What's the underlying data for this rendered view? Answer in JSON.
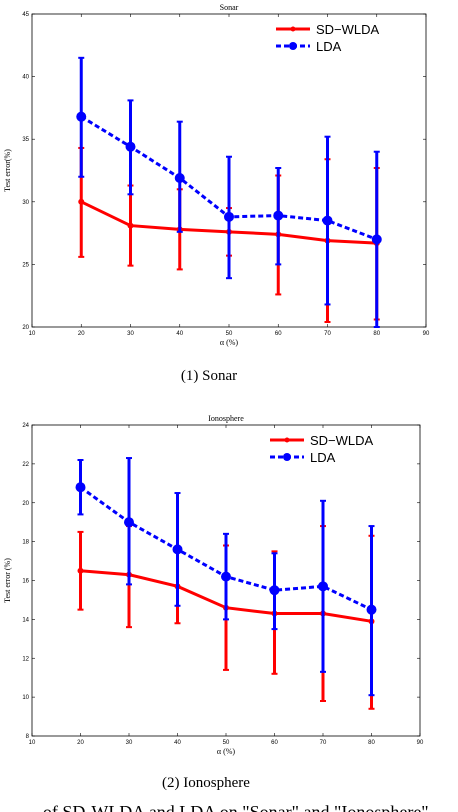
{
  "chart_data": [
    {
      "type": "line",
      "title": "Sonar",
      "xlabel": "α (%)",
      "ylabel": "Test error(%)",
      "xlim": [
        10,
        90
      ],
      "ylim": [
        20,
        45
      ],
      "xticks": [
        10,
        20,
        30,
        40,
        50,
        60,
        70,
        80,
        90
      ],
      "yticks": [
        20,
        25,
        30,
        35,
        40,
        45
      ],
      "legend": "top-right",
      "series": [
        {
          "name": "SD−WLDA",
          "color": "#ff0000",
          "style": "solid",
          "marker": "star",
          "x": [
            20,
            30,
            40,
            50,
            60,
            70,
            80
          ],
          "y": [
            30.0,
            28.1,
            27.8,
            27.6,
            27.4,
            26.9,
            26.7
          ],
          "err_low": [
            25.6,
            24.9,
            24.6,
            25.7,
            22.6,
            20.4,
            20.6
          ],
          "err_high": [
            34.3,
            31.3,
            31.0,
            29.5,
            32.1,
            33.4,
            32.7
          ]
        },
        {
          "name": "LDA",
          "color": "#0000ff",
          "style": "dashed",
          "marker": "circle",
          "x": [
            20,
            30,
            40,
            50,
            60,
            70,
            80
          ],
          "y": [
            36.8,
            34.4,
            31.9,
            28.8,
            28.9,
            28.5,
            27.0
          ],
          "err_low": [
            32.0,
            30.6,
            27.6,
            23.9,
            25.0,
            21.8,
            20.0
          ],
          "err_high": [
            41.5,
            38.1,
            36.4,
            33.6,
            32.7,
            35.2,
            34.0
          ]
        }
      ]
    },
    {
      "type": "line",
      "title": "Ionosphere",
      "xlabel": "α (%)",
      "ylabel": "Test error (%)",
      "xlim": [
        10,
        90
      ],
      "ylim": [
        8,
        24
      ],
      "xticks": [
        10,
        20,
        30,
        40,
        50,
        60,
        70,
        80,
        90
      ],
      "yticks": [
        8,
        10,
        12,
        14,
        16,
        18,
        20,
        22,
        24
      ],
      "legend": "top-right",
      "series": [
        {
          "name": "SD−WLDA",
          "color": "#ff0000",
          "style": "solid",
          "marker": "star",
          "x": [
            20,
            30,
            40,
            50,
            60,
            70,
            80
          ],
          "y": [
            16.5,
            16.3,
            15.7,
            14.6,
            14.3,
            14.3,
            13.9
          ],
          "err_low": [
            14.5,
            13.6,
            13.8,
            11.4,
            11.2,
            9.8,
            9.4
          ],
          "err_high": [
            18.5,
            18.8,
            17.7,
            17.8,
            17.5,
            18.8,
            18.3
          ]
        },
        {
          "name": "LDA",
          "color": "#0000ff",
          "style": "dashed",
          "marker": "circle",
          "x": [
            20,
            30,
            40,
            50,
            60,
            70,
            80
          ],
          "y": [
            20.8,
            19.0,
            17.6,
            16.2,
            15.5,
            15.7,
            14.5
          ],
          "err_low": [
            19.4,
            15.8,
            14.7,
            14.0,
            13.5,
            11.3,
            10.1
          ],
          "err_high": [
            22.2,
            22.3,
            20.5,
            18.4,
            17.4,
            20.1,
            18.8
          ]
        }
      ]
    }
  ],
  "captions": [
    "(1)  Sonar",
    "(2)  Ionosphere"
  ],
  "footer_text": "...of SD-WLDA and LDA on \"Sonar\" and \"Ionosphere\""
}
